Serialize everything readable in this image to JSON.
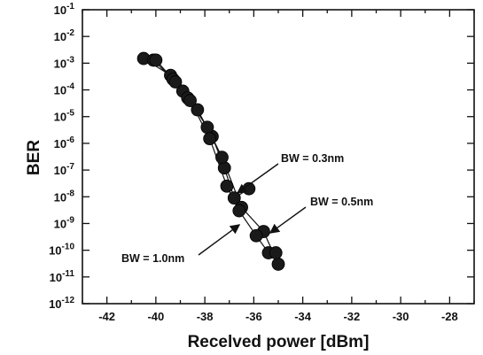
{
  "chart_data": {
    "type": "scatter",
    "xlabel": "Recelved power [dBm]",
    "ylabel": "BER",
    "xlim": [
      -43,
      -27
    ],
    "ylim_exponent": [
      -12,
      -1
    ],
    "y_scale": "log",
    "grid": false,
    "x_ticks": [
      "-42",
      "-40",
      "-38",
      "-36",
      "-34",
      "-32",
      "-30",
      "-28"
    ],
    "y_ticks": [
      {
        "base": "10",
        "exp": "-12"
      },
      {
        "base": "10",
        "exp": "-11"
      },
      {
        "base": "10",
        "exp": "-10"
      },
      {
        "base": "10",
        "exp": "-9"
      },
      {
        "base": "10",
        "exp": "-8"
      },
      {
        "base": "10",
        "exp": "-7"
      },
      {
        "base": "10",
        "exp": "-6"
      },
      {
        "base": "10",
        "exp": "-5"
      },
      {
        "base": "10",
        "exp": "-4"
      },
      {
        "base": "10",
        "exp": "-3"
      },
      {
        "base": "10",
        "exp": "-2"
      },
      {
        "base": "10",
        "exp": "-1"
      }
    ],
    "series": [
      {
        "name": "BW = 0.3nm",
        "points": [
          {
            "x": -40.5,
            "y": 0.0015
          },
          {
            "x": -39.4,
            "y": 0.00035
          },
          {
            "x": -38.9,
            "y": 9e-05
          },
          {
            "x": -38.3,
            "y": 1.8e-05
          },
          {
            "x": -37.7,
            "y": 1.8e-06
          },
          {
            "x": -37.2,
            "y": 1.2e-07
          },
          {
            "x": -36.8,
            "y": 9e-09
          },
          {
            "x": -36.2,
            "y": 2e-08
          }
        ]
      },
      {
        "name": "BW = 0.5nm",
        "points": [
          {
            "x": -40.1,
            "y": 0.0013
          },
          {
            "x": -39.3,
            "y": 0.00025
          },
          {
            "x": -38.7,
            "y": 5e-05
          },
          {
            "x": -37.9,
            "y": 4e-06
          },
          {
            "x": -37.3,
            "y": 3e-07
          },
          {
            "x": -36.5,
            "y": 4e-09
          },
          {
            "x": -35.6,
            "y": 5e-10
          },
          {
            "x": -35.0,
            "y": 3e-11
          }
        ]
      },
      {
        "name": "BW = 1.0nm",
        "points": [
          {
            "x": -40.0,
            "y": 0.0013
          },
          {
            "x": -39.2,
            "y": 0.0002
          },
          {
            "x": -38.6,
            "y": 4e-05
          },
          {
            "x": -37.8,
            "y": 1.5e-06
          },
          {
            "x": -37.1,
            "y": 2.5e-08
          },
          {
            "x": -36.6,
            "y": 3e-09
          },
          {
            "x": -35.9,
            "y": 3.5e-10
          },
          {
            "x": -35.4,
            "y": 8e-11
          },
          {
            "x": -35.1,
            "y": 8e-11
          }
        ]
      }
    ],
    "annotations": [
      {
        "text": "BW = 0.3nm",
        "points_to_series": "BW = 0.3nm"
      },
      {
        "text": "BW = 0.5nm",
        "points_to_series": "BW = 0.5nm"
      },
      {
        "text": "BW = 1.0nm",
        "points_to_series": "BW = 1.0nm"
      }
    ],
    "colors": {
      "marker": "#1a1a1a",
      "line": "#111111",
      "axis": "#111111"
    }
  }
}
